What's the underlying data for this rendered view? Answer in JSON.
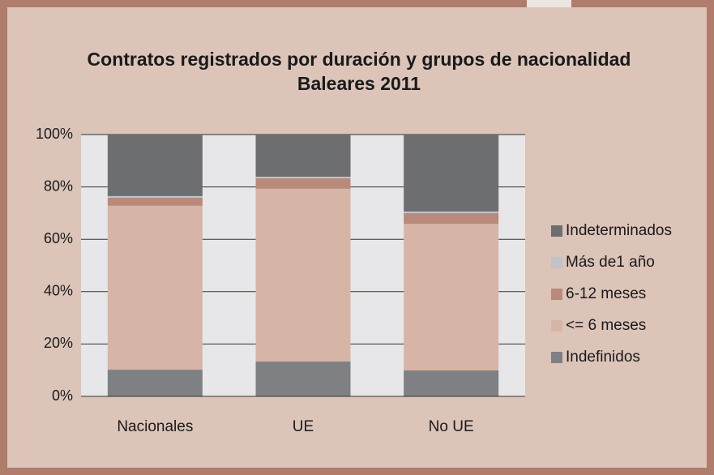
{
  "chart_data": {
    "type": "stacked_bar",
    "title": "Contratos registrados por duración y grupos de nacionalidad",
    "subtitle": "Baleares 2011",
    "categories": [
      "Nacionales",
      "UE",
      "No UE"
    ],
    "series": [
      {
        "name": "Indefinidos",
        "color": "#7f8084",
        "values": [
          10.2,
          13.3,
          9.9
        ]
      },
      {
        "name": "<= 6 meses",
        "color": "#d6b5a7",
        "values": [
          62.6,
          66,
          56
        ]
      },
      {
        "name": "6-12 meses",
        "color": "#b98a7a",
        "values": [
          3.1,
          4,
          4.1
        ]
      },
      {
        "name": "Más de1 año",
        "color": "#bfc3c8",
        "values": [
          0.6,
          0.6,
          0.6
        ]
      },
      {
        "name": "Indeterminados",
        "color": "#6d6e70",
        "values": [
          23.5,
          16.1,
          29.4
        ]
      }
    ],
    "ylim": [
      0,
      100
    ],
    "yticks": [
      {
        "value": 0,
        "label": "0%"
      },
      {
        "value": 20,
        "label": "20%"
      },
      {
        "value": 40,
        "label": "40%"
      },
      {
        "value": 60,
        "label": "60%"
      },
      {
        "value": 80,
        "label": "80%"
      },
      {
        "value": 100,
        "label": "100%"
      }
    ],
    "grid": true,
    "legend": "right"
  }
}
